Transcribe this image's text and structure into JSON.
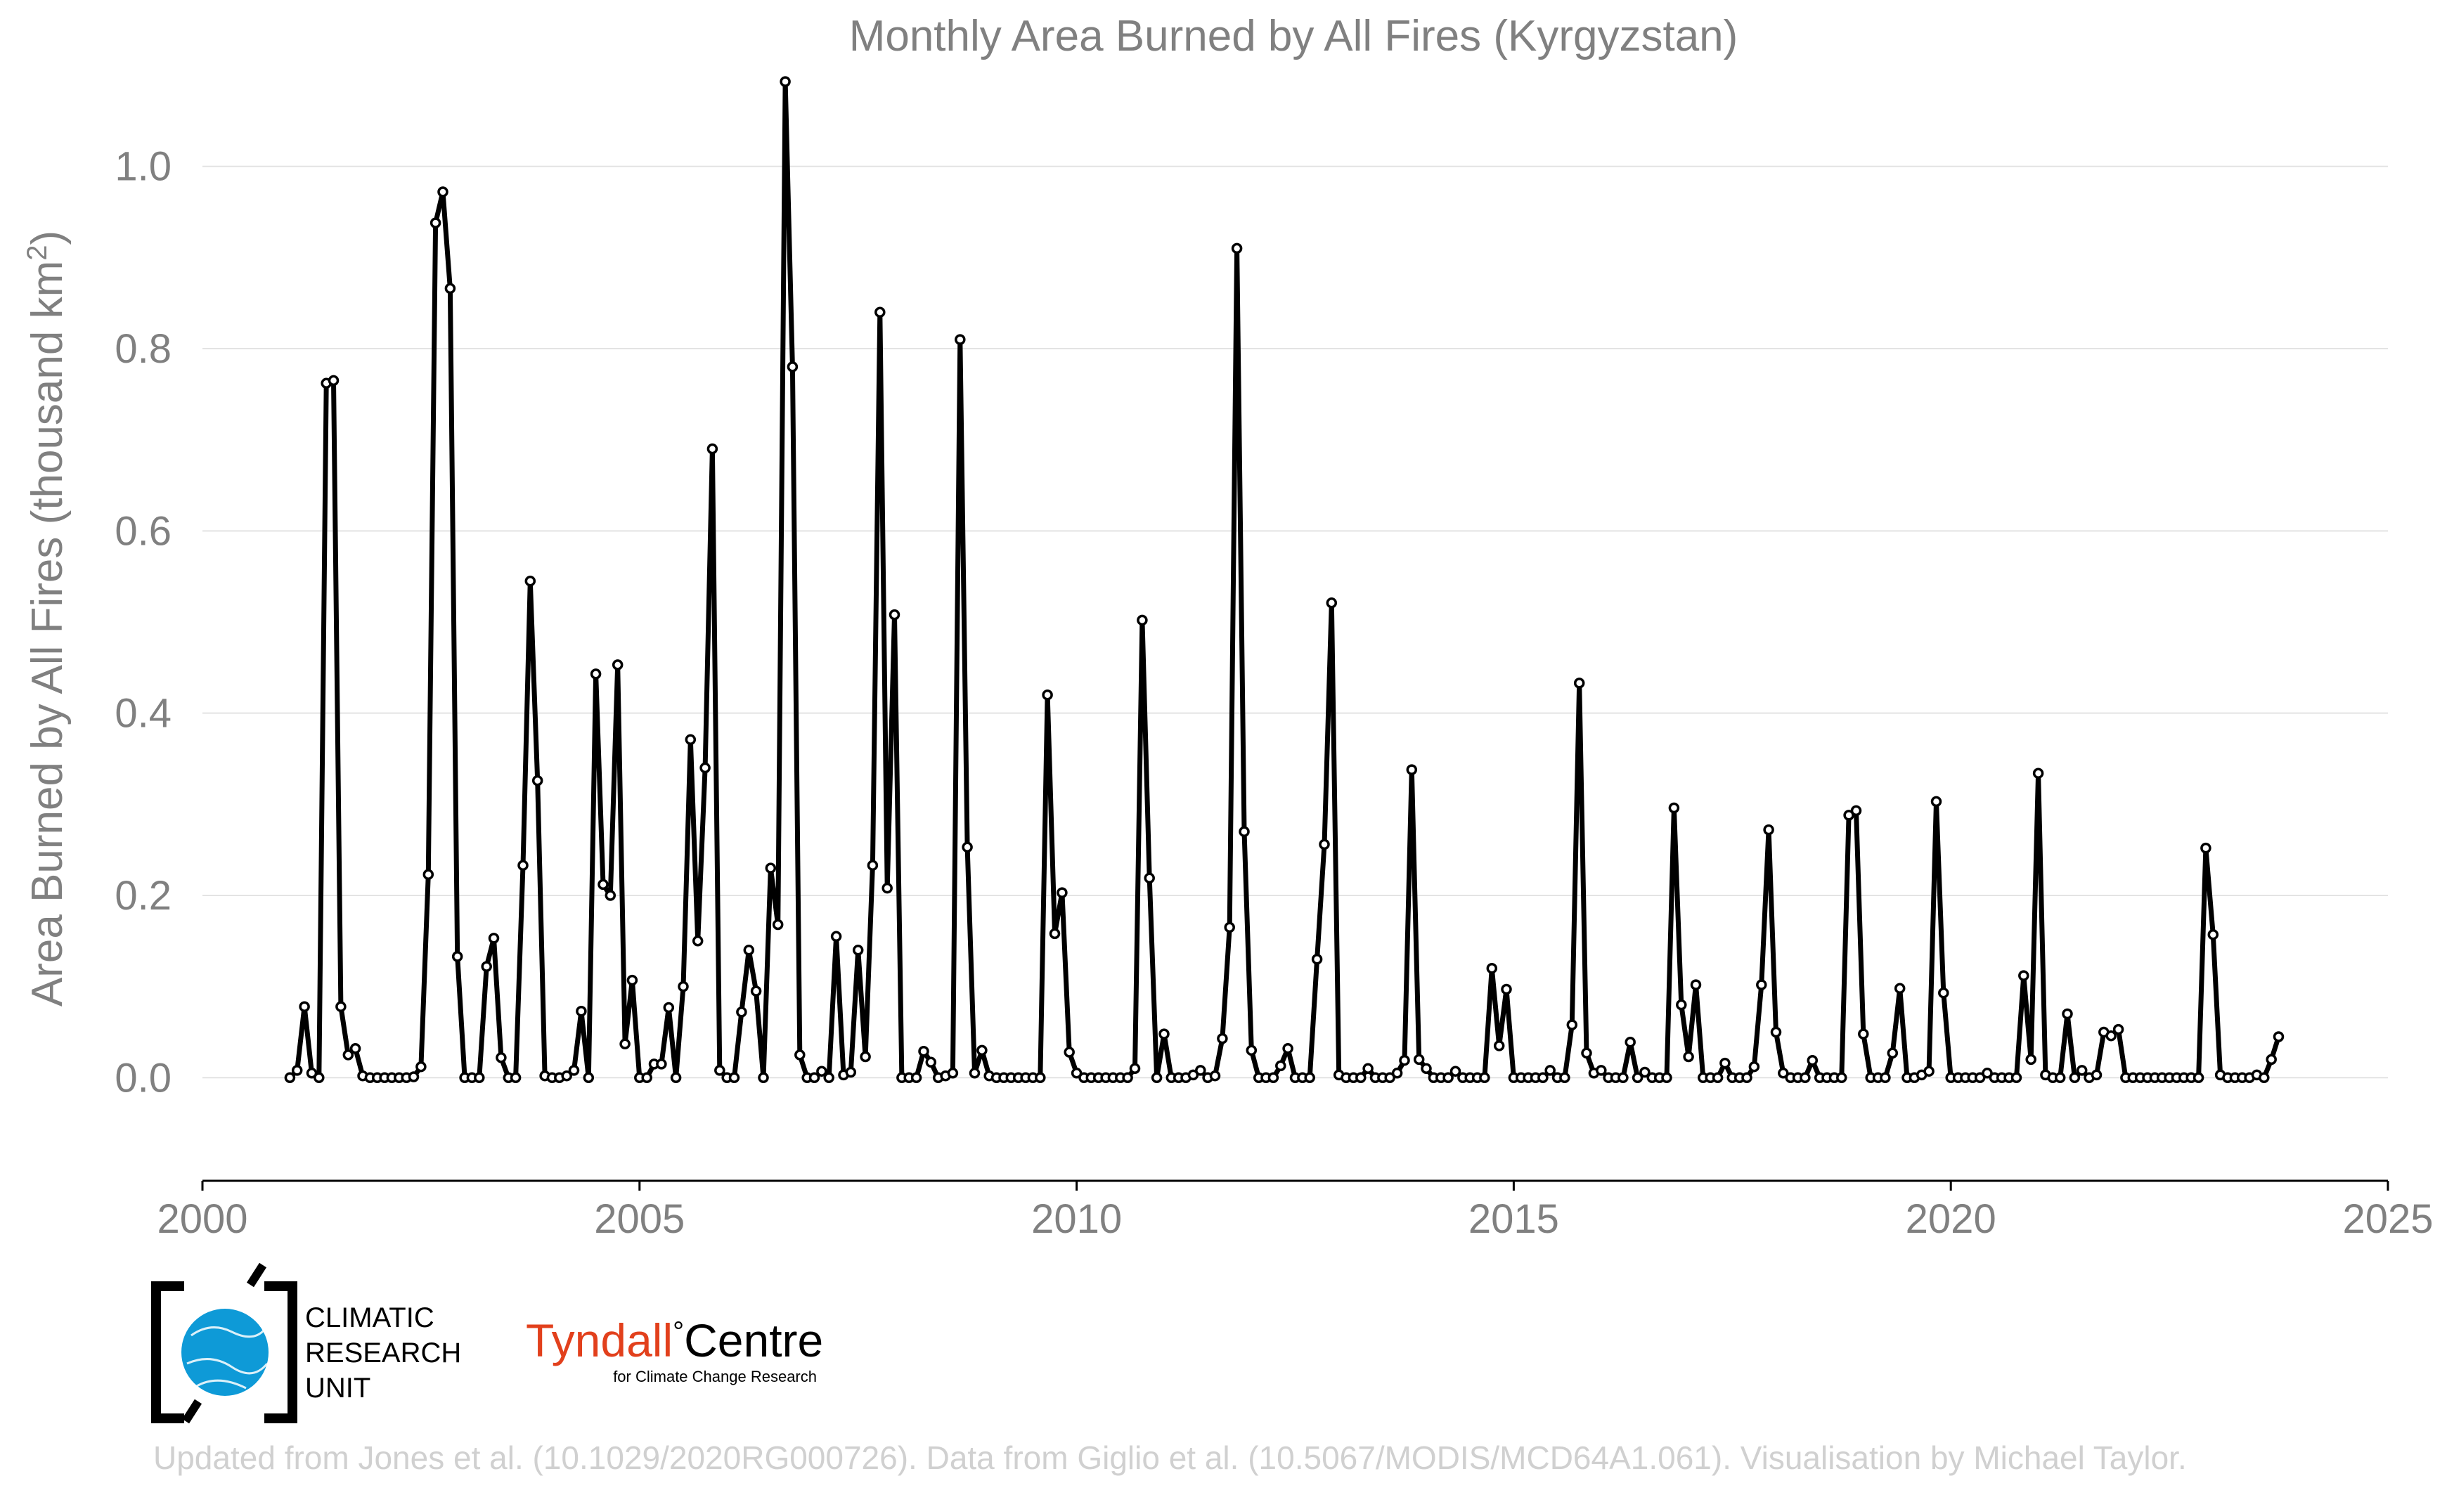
{
  "chart_data": {
    "type": "line",
    "title": "Monthly Area Burned by All Fires (Kyrgyzstan)",
    "xlabel": "",
    "ylabel": "Area Burned by All Fires (thousand km",
    "ylabel_sup": "2",
    "ylabel_close": ")",
    "xlim": [
      2000,
      2025
    ],
    "ylim": [
      -0.09,
      1.09
    ],
    "x_ticks": [
      2000,
      2005,
      2010,
      2015,
      2020,
      2025
    ],
    "y_ticks": [
      0.0,
      0.2,
      0.4,
      0.6,
      0.8,
      1.0
    ],
    "y_tick_labels": [
      "0.0",
      "0.2",
      "0.4",
      "0.6",
      "0.8",
      "1.0"
    ],
    "grid": "horizontal",
    "legend": "none",
    "start": "2001-01",
    "series": [
      {
        "values": [
          0.0,
          0.008,
          0.078,
          0.005,
          0.0,
          0.762,
          0.765,
          0.078,
          0.025,
          0.032,
          0.002,
          0.0,
          0.0,
          0.0,
          0.0,
          0.0,
          0.0,
          0.001,
          0.012,
          0.223,
          0.938,
          0.972,
          0.866,
          0.133,
          0.0,
          0.0,
          0.0,
          0.122,
          0.153,
          0.022,
          0.0,
          0.0,
          0.233,
          0.545,
          0.326,
          0.002,
          0.0,
          0.0,
          0.002,
          0.008,
          0.073,
          0.0,
          0.443,
          0.212,
          0.2,
          0.453,
          0.037,
          0.107,
          0.0,
          0.0,
          0.015,
          0.015,
          0.077,
          0.0,
          0.1,
          0.371,
          0.15,
          0.34,
          0.69,
          0.008,
          0.0,
          0.0,
          0.072,
          0.14,
          0.095,
          0.0,
          0.23,
          0.168,
          1.093,
          0.78,
          0.025,
          0.0,
          0.0,
          0.007,
          0.0,
          0.155,
          0.003,
          0.006,
          0.14,
          0.023,
          0.233,
          0.84,
          0.208,
          0.508,
          0.0,
          0.0,
          0.0,
          0.029,
          0.017,
          0.0,
          0.002,
          0.005,
          0.81,
          0.253,
          0.005,
          0.03,
          0.002,
          0.0,
          0.0,
          0.0,
          0.0,
          0.0,
          0.0,
          0.0,
          0.42,
          0.158,
          0.203,
          0.028,
          0.005,
          0.0,
          0.0,
          0.0,
          0.0,
          0.0,
          0.0,
          0.0,
          0.01,
          0.502,
          0.219,
          0.0,
          0.048,
          0.0,
          0.0,
          0.0,
          0.003,
          0.008,
          0.0,
          0.002,
          0.043,
          0.165,
          0.91,
          0.27,
          0.03,
          0.0,
          0.0,
          0.0,
          0.013,
          0.032,
          0.0,
          0.0,
          0.0,
          0.13,
          0.256,
          0.521,
          0.003,
          0.0,
          0.0,
          0.0,
          0.01,
          0.0,
          0.0,
          0.0,
          0.005,
          0.019,
          0.338,
          0.02,
          0.01,
          0.0,
          0.0,
          0.0,
          0.007,
          0.0,
          0.0,
          0.0,
          0.0,
          0.12,
          0.035,
          0.097,
          0.0,
          0.0,
          0.0,
          0.0,
          0.0,
          0.008,
          0.0,
          0.0,
          0.058,
          0.433,
          0.027,
          0.005,
          0.008,
          0.0,
          0.0,
          0.0,
          0.039,
          0.0,
          0.006,
          0.0,
          0.0,
          0.0,
          0.296,
          0.08,
          0.023,
          0.102,
          0.0,
          0.0,
          0.0,
          0.016,
          0.0,
          0.0,
          0.0,
          0.012,
          0.102,
          0.272,
          0.05,
          0.005,
          0.0,
          0.0,
          0.0,
          0.019,
          0.0,
          0.0,
          0.0,
          0.0,
          0.288,
          0.293,
          0.048,
          0.0,
          0.0,
          0.0,
          0.027,
          0.098,
          0.0,
          0.0,
          0.003,
          0.007,
          0.303,
          0.093,
          0.0,
          0.0,
          0.0,
          0.0,
          0.0,
          0.005,
          0.0,
          0.0,
          0.0,
          0.0,
          0.112,
          0.02,
          0.334,
          0.003,
          0.0,
          0.0,
          0.07,
          0.0,
          0.008,
          0.0,
          0.003,
          0.05,
          0.046,
          0.053,
          0.0,
          0.0,
          0.0,
          0.0,
          0.0,
          0.0,
          0.0,
          0.0,
          0.0,
          0.0,
          0.0,
          0.252,
          0.157,
          0.003,
          0.0,
          0.0,
          0.0,
          0.0,
          0.003,
          0.0,
          0.02,
          0.045
        ]
      }
    ]
  },
  "logos": {
    "cru_line1": "CLIMATIC",
    "cru_line2": "RESEARCH",
    "cru_line3": "UNIT",
    "tyndall_name_a": "Tyndall",
    "tyndall_degree": "°",
    "tyndall_name_b": "Centre",
    "tyndall_tagline": "for Climate Change Research"
  },
  "footer": {
    "credit": "Updated from Jones et al. (10.1029/2020RG000726). Data from Giglio et al. (10.5067/MODIS/MCD64A1.061). Visualisation by Michael Taylor."
  },
  "colors": {
    "line": "#000000",
    "marker_fill": "#ffffff",
    "grid": "#e3e3e3",
    "axis_text": "#808080",
    "footer_text": "#d0d0d0",
    "cru_blue": "#0e9ad7",
    "tyndall_red": "#e2401c"
  }
}
